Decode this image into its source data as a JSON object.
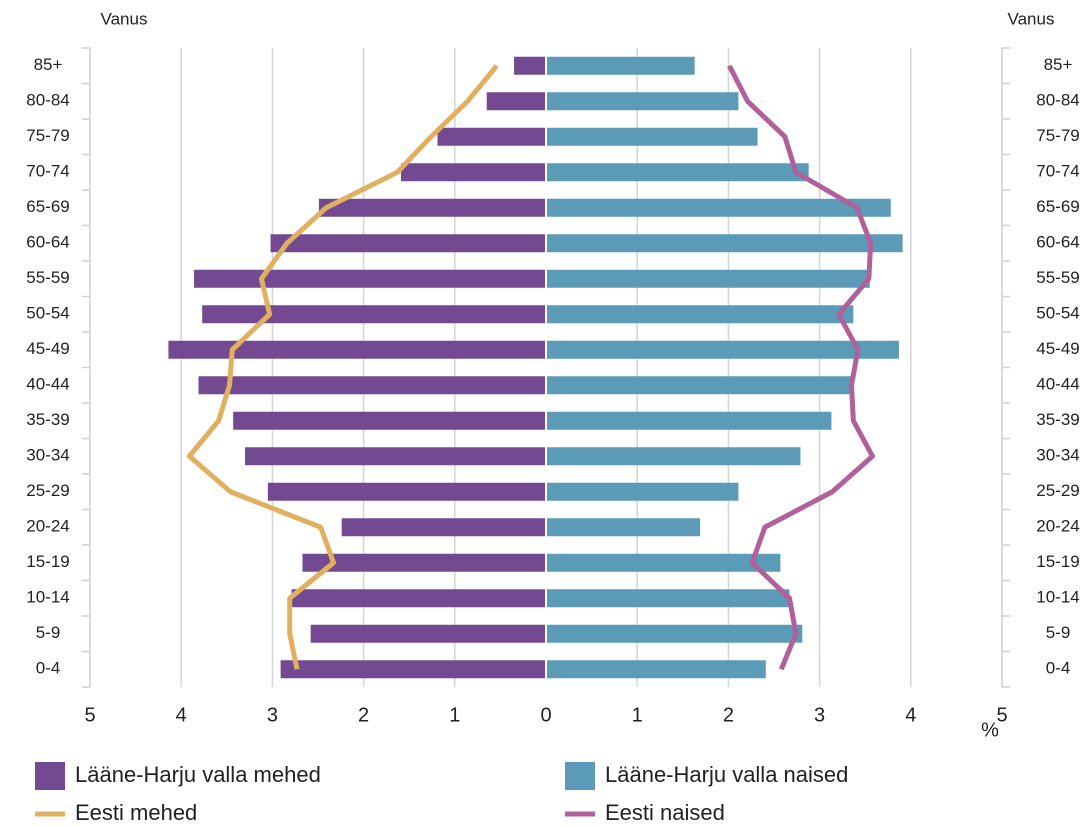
{
  "chart_data": {
    "type": "pyramid",
    "y_axis_label": "Vanus",
    "x_axis_label": "%",
    "categories": [
      "0-4",
      "5-9",
      "10-14",
      "15-19",
      "20-24",
      "25-29",
      "30-34",
      "35-39",
      "40-44",
      "45-49",
      "50-54",
      "55-59",
      "60-64",
      "65-69",
      "70-74",
      "75-79",
      "80-84",
      "85+"
    ],
    "series": [
      {
        "name": "Lääne-Harju valla mehed",
        "color": "#734a91",
        "side": "left",
        "style": "bar",
        "values": [
          2.91,
          2.58,
          2.79,
          2.67,
          2.24,
          3.05,
          3.3,
          3.43,
          3.81,
          4.14,
          3.77,
          3.86,
          3.02,
          2.49,
          1.59,
          1.19,
          0.65,
          0.35
        ]
      },
      {
        "name": "Lääne-Harju valla naised",
        "color": "#5b9bb8",
        "side": "right",
        "style": "bar",
        "values": [
          2.41,
          2.81,
          2.67,
          2.57,
          1.69,
          2.11,
          2.79,
          3.13,
          3.35,
          3.87,
          3.37,
          3.55,
          3.91,
          3.78,
          2.88,
          2.32,
          2.11,
          1.63
        ]
      },
      {
        "name": "Eesti mehed",
        "color": "#e0b060",
        "side": "left",
        "style": "line",
        "values": [
          2.73,
          2.81,
          2.81,
          2.33,
          2.47,
          3.46,
          3.91,
          3.59,
          3.47,
          3.44,
          3.03,
          3.12,
          2.84,
          2.41,
          1.63,
          1.26,
          0.86,
          0.54
        ]
      },
      {
        "name": "Eesti naised",
        "color": "#b0609a",
        "side": "right",
        "style": "line",
        "values": [
          2.58,
          2.74,
          2.67,
          2.26,
          2.4,
          3.14,
          3.58,
          3.37,
          3.35,
          3.42,
          3.21,
          3.54,
          3.56,
          3.41,
          2.74,
          2.62,
          2.21,
          2.01
        ]
      }
    ],
    "xlim": [
      0,
      5
    ],
    "xticks": [
      0,
      1,
      2,
      3,
      4,
      5
    ],
    "grid": true
  }
}
